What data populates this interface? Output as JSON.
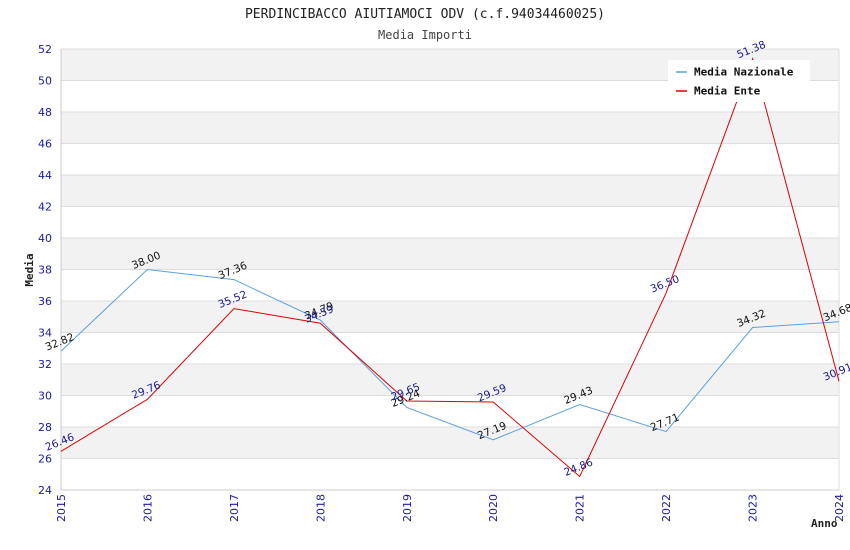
{
  "chart_data": {
    "type": "line",
    "title": "PERDINCIBACCO AIUTIAMOCI ODV (c.f.94034460025)",
    "subtitle": "Media Importi",
    "xlabel": "Anno",
    "ylabel": "Media",
    "ylim": [
      24,
      52
    ],
    "yticks": [
      "24",
      "26",
      "28",
      "30",
      "32",
      "34",
      "36",
      "38",
      "40",
      "42",
      "44",
      "46",
      "48",
      "50",
      "52"
    ],
    "categories": [
      "2015",
      "2016",
      "2017",
      "2018",
      "2019",
      "2020",
      "2021",
      "2022",
      "2023",
      "2024"
    ],
    "grid": true,
    "legend_position": "top-right",
    "series": [
      {
        "name": "Media Nazionale",
        "color": "#5aa0e0",
        "label_color": "#111111",
        "values": [
          32.82,
          38.0,
          37.36,
          34.79,
          29.24,
          27.19,
          29.43,
          27.71,
          34.32,
          34.68
        ],
        "labels": [
          "32.82",
          "38.00",
          "37.36",
          "34.79",
          "29.24",
          "27.19",
          "29.43",
          "27.71",
          "34.32",
          "34.68"
        ]
      },
      {
        "name": "Media Ente",
        "color": "#e00000",
        "label_color": "#1a1a8c",
        "values": [
          26.46,
          29.76,
          35.52,
          34.59,
          29.65,
          29.59,
          24.86,
          36.5,
          51.38,
          30.91
        ],
        "labels": [
          "26.46",
          "29.76",
          "35.52",
          "34.59",
          "29.65",
          "29.59",
          "24.86",
          "36.50",
          "51.38",
          "30.91"
        ]
      }
    ]
  }
}
